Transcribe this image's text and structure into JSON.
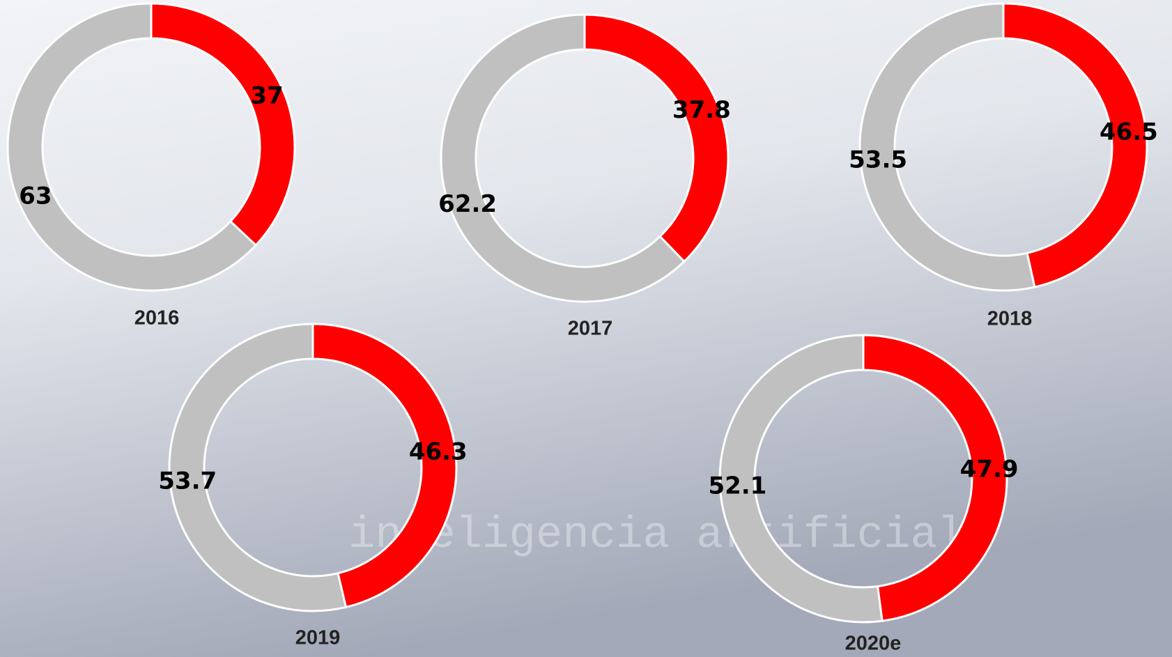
{
  "chart_data": [
    {
      "type": "donut",
      "title": "2016",
      "values": [
        37,
        63
      ],
      "colors": [
        "#ff0000",
        "#c0c0c0"
      ]
    },
    {
      "type": "donut",
      "title": "2017",
      "values": [
        37.8,
        62.2
      ],
      "colors": [
        "#ff0000",
        "#c0c0c0"
      ]
    },
    {
      "type": "donut",
      "title": "2018",
      "values": [
        46.5,
        53.5
      ],
      "colors": [
        "#ff0000",
        "#c0c0c0"
      ]
    },
    {
      "type": "donut",
      "title": "2019",
      "values": [
        46.3,
        53.7
      ],
      "colors": [
        "#ff0000",
        "#c0c0c0"
      ]
    },
    {
      "type": "donut",
      "title": "2020e",
      "values": [
        47.9,
        52.1
      ],
      "colors": [
        "#ff0000",
        "#c0c0c0"
      ]
    }
  ],
  "watermark": "inteligencia artificial"
}
